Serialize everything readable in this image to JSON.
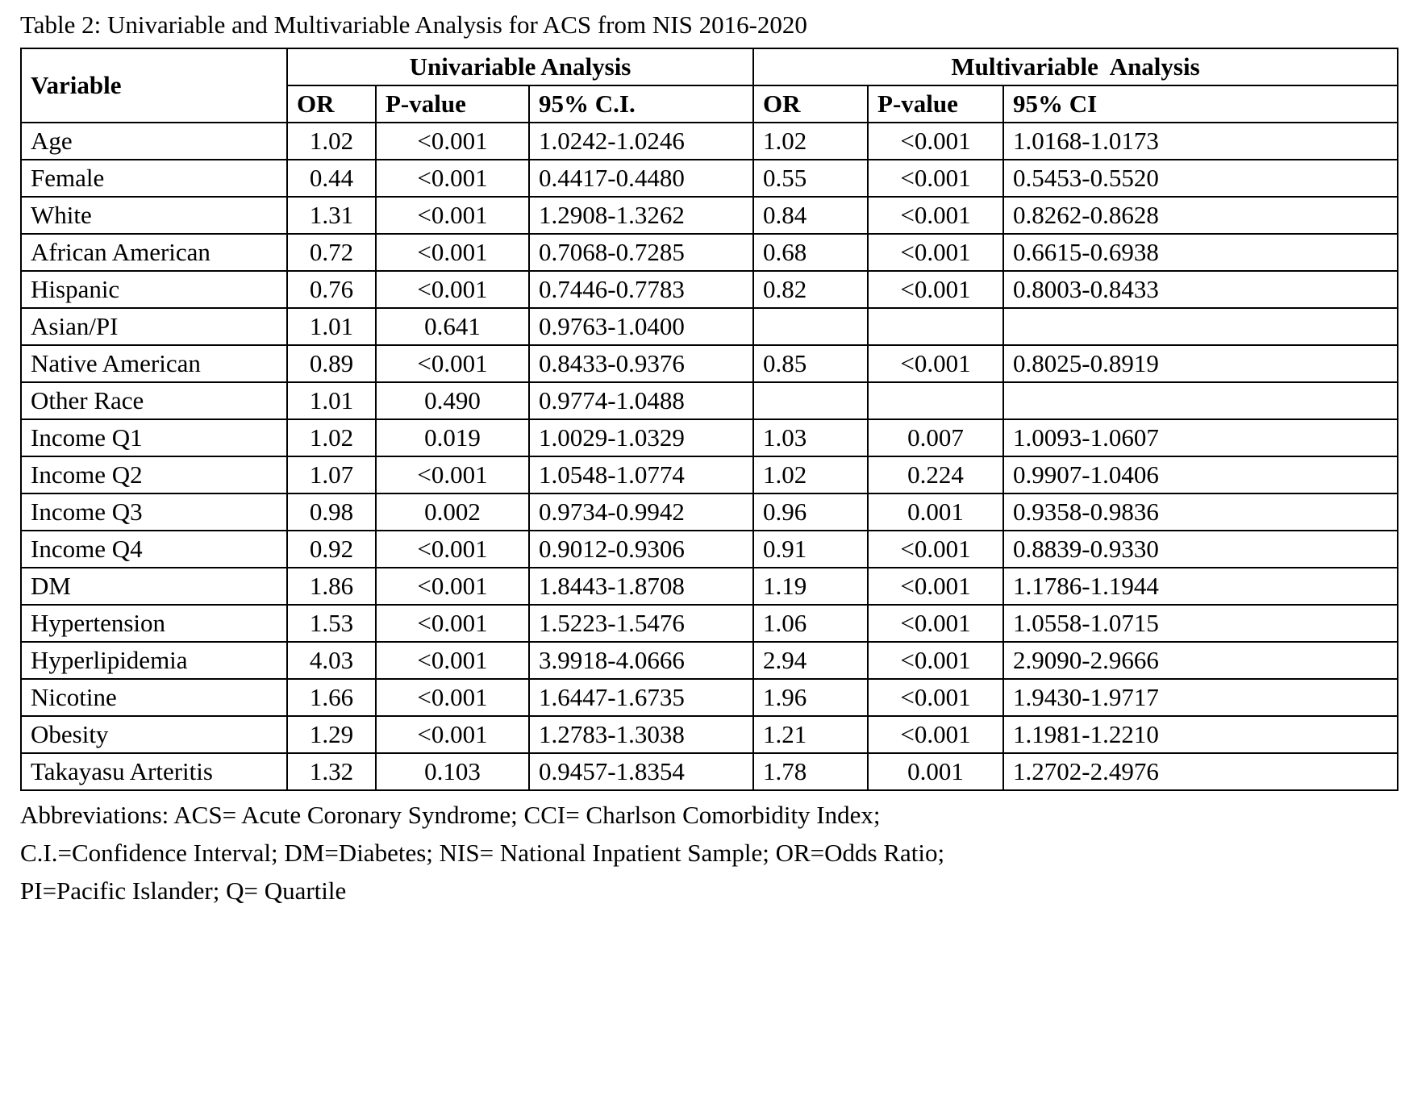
{
  "document": {
    "title": "Table 2: Univariable and Multivariable Analysis for ACS from NIS 2016-2020",
    "footnote_lines": [
      "Abbreviations: ACS= Acute Coronary Syndrome; CCI= Charlson Comorbidity Index;",
      "C.I.=Confidence Interval; DM=Diabetes; NIS= National Inpatient Sample; OR=Odds Ratio;",
      "PI=Pacific Islander; Q= Quartile"
    ]
  },
  "table": {
    "header": {
      "variable": "Variable",
      "group1": "Univariable Analysis",
      "group2": "Multivariable  Analysis",
      "sub1": [
        "OR",
        "P-value",
        "95% C.I."
      ],
      "sub2": [
        "OR",
        "P-value",
        "95% CI"
      ]
    },
    "rows": [
      {
        "variable": "Age",
        "uv_or": "1.02",
        "uv_p": "<0.001",
        "uv_ci": "1.0242-1.0246",
        "mv_or": "1.02",
        "mv_p": "<0.001",
        "mv_ci": "1.0168-1.0173"
      },
      {
        "variable": "Female",
        "uv_or": "0.44",
        "uv_p": "<0.001",
        "uv_ci": "0.4417-0.4480",
        "mv_or": "0.55",
        "mv_p": "<0.001",
        "mv_ci": "0.5453-0.5520"
      },
      {
        "variable": "White",
        "uv_or": "1.31",
        "uv_p": "<0.001",
        "uv_ci": "1.2908-1.3262",
        "mv_or": "0.84",
        "mv_p": "<0.001",
        "mv_ci": "0.8262-0.8628"
      },
      {
        "variable": "African American",
        "uv_or": "0.72",
        "uv_p": "<0.001",
        "uv_ci": "0.7068-0.7285",
        "mv_or": "0.68",
        "mv_p": "<0.001",
        "mv_ci": "0.6615-0.6938"
      },
      {
        "variable": "Hispanic",
        "uv_or": "0.76",
        "uv_p": "<0.001",
        "uv_ci": "0.7446-0.7783",
        "mv_or": "0.82",
        "mv_p": "<0.001",
        "mv_ci": "0.8003-0.8433"
      },
      {
        "variable": "Asian/PI",
        "uv_or": "1.01",
        "uv_p": "0.641",
        "uv_ci": "0.9763-1.0400",
        "mv_or": "",
        "mv_p": "",
        "mv_ci": ""
      },
      {
        "variable": "Native American",
        "uv_or": "0.89",
        "uv_p": "<0.001",
        "uv_ci": "0.8433-0.9376",
        "mv_or": "0.85",
        "mv_p": "<0.001",
        "mv_ci": "0.8025-0.8919"
      },
      {
        "variable": "Other Race",
        "uv_or": "1.01",
        "uv_p": "0.490",
        "uv_ci": "0.9774-1.0488",
        "mv_or": "",
        "mv_p": "",
        "mv_ci": ""
      },
      {
        "variable": "Income Q1",
        "uv_or": "1.02",
        "uv_p": "0.019",
        "uv_ci": "1.0029-1.0329",
        "mv_or": "1.03",
        "mv_p": "0.007",
        "mv_ci": "1.0093-1.0607"
      },
      {
        "variable": "Income Q2",
        "uv_or": "1.07",
        "uv_p": "<0.001",
        "uv_ci": "1.0548-1.0774",
        "mv_or": "1.02",
        "mv_p": "0.224",
        "mv_ci": "0.9907-1.0406"
      },
      {
        "variable": "Income Q3",
        "uv_or": "0.98",
        "uv_p": "0.002",
        "uv_ci": "0.9734-0.9942",
        "mv_or": "0.96",
        "mv_p": "0.001",
        "mv_ci": "0.9358-0.9836"
      },
      {
        "variable": "Income Q4",
        "uv_or": "0.92",
        "uv_p": "<0.001",
        "uv_ci": "0.9012-0.9306",
        "mv_or": "0.91",
        "mv_p": "<0.001",
        "mv_ci": "0.8839-0.9330"
      },
      {
        "variable": "DM",
        "uv_or": "1.86",
        "uv_p": "<0.001",
        "uv_ci": "1.8443-1.8708",
        "mv_or": "1.19",
        "mv_p": "<0.001",
        "mv_ci": "1.1786-1.1944"
      },
      {
        "variable": "Hypertension",
        "uv_or": "1.53",
        "uv_p": "<0.001",
        "uv_ci": "1.5223-1.5476",
        "mv_or": "1.06",
        "mv_p": "<0.001",
        "mv_ci": "1.0558-1.0715"
      },
      {
        "variable": "Hyperlipidemia",
        "uv_or": "4.03",
        "uv_p": "<0.001",
        "uv_ci": "3.9918-4.0666",
        "mv_or": "2.94",
        "mv_p": "<0.001",
        "mv_ci": "2.9090-2.9666"
      },
      {
        "variable": "Nicotine",
        "uv_or": "1.66",
        "uv_p": "<0.001",
        "uv_ci": "1.6447-1.6735",
        "mv_or": "1.96",
        "mv_p": "<0.001",
        "mv_ci": "1.9430-1.9717"
      },
      {
        "variable": "Obesity",
        "uv_or": "1.29",
        "uv_p": "<0.001",
        "uv_ci": "1.2783-1.3038",
        "mv_or": "1.21",
        "mv_p": "<0.001",
        "mv_ci": "1.1981-1.2210"
      },
      {
        "variable": "Takayasu Arteritis",
        "uv_or": "1.32",
        "uv_p": "0.103",
        "uv_ci": "0.9457-1.8354",
        "mv_or": "1.78",
        "mv_p": "0.001",
        "mv_ci": "1.2702-2.4976"
      }
    ]
  }
}
